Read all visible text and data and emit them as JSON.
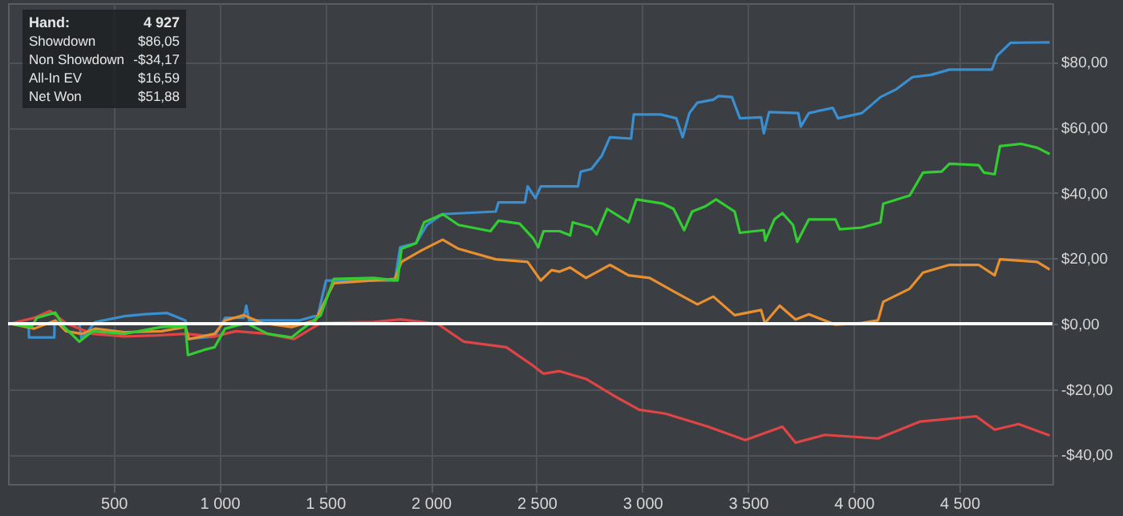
{
  "chart_data": {
    "type": "line",
    "xlim": [
      0,
      4940
    ],
    "ylim": [
      -49,
      98
    ],
    "xticks": [
      {
        "value": 500,
        "label": "500"
      },
      {
        "value": 1000,
        "label": "1 000"
      },
      {
        "value": 1500,
        "label": "1 500"
      },
      {
        "value": 2000,
        "label": "2 000"
      },
      {
        "value": 2500,
        "label": "2 500"
      },
      {
        "value": 3000,
        "label": "3 000"
      },
      {
        "value": 3500,
        "label": "3 500"
      },
      {
        "value": 4000,
        "label": "4 000"
      },
      {
        "value": 4500,
        "label": "4 500"
      }
    ],
    "yticks": [
      {
        "value": -40,
        "label": "-$40,00"
      },
      {
        "value": -20,
        "label": "-$20,00"
      },
      {
        "value": 0,
        "label": "$0,00"
      },
      {
        "value": 20,
        "label": "$20,00"
      },
      {
        "value": 40,
        "label": "$40,00"
      },
      {
        "value": 60,
        "label": "$60,00"
      },
      {
        "value": 80,
        "label": "$80,00"
      }
    ],
    "grid": true,
    "ref_lines": [
      {
        "axis": "y",
        "value": 0,
        "color": "#ffffff"
      }
    ],
    "annotations": [
      "Hand:",
      "4 927",
      "Showdown",
      "$86,05",
      "Non Showdown",
      "-$34,17",
      "All-In EV",
      "$16,59",
      "Net Won",
      "$51,88"
    ],
    "series": [
      {
        "color": "#3a8fd0",
        "x": [
          10,
          98,
          99,
          219,
          220,
          337,
          348,
          412,
          550,
          650,
          751,
          839,
          846,
          977,
          1027,
          1115,
          1127,
          1140,
          1378,
          1466,
          1504,
          1830,
          1855,
          1930,
          1981,
          2056,
          2307,
          2320,
          2445,
          2458,
          2495,
          2520,
          2609,
          2696,
          2709,
          2759,
          2809,
          2847,
          2947,
          2960,
          3085,
          3161,
          3191,
          3223,
          3261,
          3336,
          3361,
          3424,
          3462,
          3562,
          3575,
          3600,
          3738,
          3750,
          3788,
          3901,
          3926,
          4039,
          4127,
          4202,
          4278,
          4366,
          4453,
          4654,
          4679,
          4742,
          4868,
          4927
        ],
        "values": [
          0,
          0,
          -4.2,
          -4.2,
          0,
          0,
          -4.7,
          0.5,
          2.3,
          2.9,
          3.3,
          1,
          -4.7,
          -3.9,
          1.8,
          1.8,
          5.5,
          1,
          1,
          2.6,
          13.2,
          13.2,
          23.4,
          24.6,
          30.2,
          33.5,
          34.3,
          37.1,
          37.1,
          42,
          38.4,
          42,
          42,
          42,
          46.5,
          47.3,
          51.4,
          57,
          56.6,
          64,
          64,
          62.8,
          57,
          64.4,
          67.6,
          68.5,
          69.6,
          69.3,
          62.8,
          63.1,
          58.2,
          64.7,
          64.4,
          60.3,
          64.4,
          66,
          62.8,
          64.4,
          69.3,
          71.7,
          75.4,
          76.1,
          77.7,
          77.7,
          82,
          85.9,
          86,
          86.05
        ]
      },
      {
        "color": "#e04545",
        "x": [
          10,
          124,
          199,
          274,
          400,
          550,
          701,
          839,
          977,
          1077,
          1228,
          1353,
          1479,
          1730,
          1855,
          2031,
          2156,
          2357,
          2483,
          2533,
          2609,
          2734,
          2860,
          2985,
          3110,
          3311,
          3487,
          3663,
          3725,
          3863,
          4115,
          4315,
          4579,
          4667,
          4780,
          4927
        ],
        "values": [
          0,
          1.8,
          3.9,
          0.2,
          -3.1,
          -3.9,
          -3.6,
          -3.1,
          -3.9,
          -2.3,
          -3.1,
          -4.7,
          0.2,
          0.5,
          1.3,
          0,
          -5.5,
          -7.2,
          -12.8,
          -15.3,
          -14.5,
          -16.9,
          -21.8,
          -26.3,
          -27.5,
          -31.5,
          -35.6,
          -31.5,
          -36.4,
          -34,
          -35.1,
          -29.9,
          -28.3,
          -32.4,
          -30.7,
          -34.17
        ]
      },
      {
        "color": "#e8902f",
        "x": [
          10,
          124,
          224,
          274,
          349,
          412,
          550,
          726,
          839,
          856,
          977,
          1027,
          1115,
          1203,
          1341,
          1454,
          1541,
          1830,
          1861,
          1955,
          2056,
          2131,
          2307,
          2458,
          2520,
          2571,
          2609,
          2659,
          2734,
          2847,
          2935,
          3035,
          3148,
          3261,
          3336,
          3437,
          3562,
          3580,
          3650,
          3725,
          3788,
          3914,
          4039,
          4115,
          4140,
          4265,
          4328,
          4453,
          4591,
          4667,
          4692,
          4868,
          4927
        ],
        "values": [
          0,
          -1.5,
          1,
          -2.3,
          -3.1,
          -1.5,
          -2.6,
          -2.3,
          -1,
          -4.7,
          -3.1,
          1,
          2.6,
          0.2,
          -1,
          1,
          12.4,
          13.7,
          18.9,
          22.4,
          25.7,
          22.9,
          19.7,
          18.9,
          13.2,
          16.4,
          15.9,
          17.2,
          14,
          18,
          14.8,
          14,
          9.9,
          5.9,
          8.3,
          2.6,
          4.2,
          0.2,
          5.5,
          1.3,
          2.9,
          -0.3,
          0.2,
          1,
          6.7,
          10.7,
          15.6,
          18,
          18,
          14.8,
          19.7,
          18.9,
          16.59
        ]
      },
      {
        "color": "#33cc33",
        "x": [
          10,
          111,
          136,
          224,
          261,
          337,
          400,
          550,
          726,
          839,
          851,
          927,
          977,
          1027,
          1127,
          1228,
          1341,
          1378,
          1479,
          1541,
          1730,
          1843,
          1861,
          1930,
          1968,
          2056,
          2131,
          2282,
          2320,
          2420,
          2483,
          2508,
          2533,
          2609,
          2659,
          2671,
          2759,
          2784,
          2834,
          2935,
          2972,
          3098,
          3148,
          3198,
          3236,
          3299,
          3349,
          3437,
          3462,
          3575,
          3582,
          3625,
          3663,
          3713,
          3733,
          3788,
          3914,
          3934,
          4039,
          4127,
          4140,
          4265,
          4328,
          4416,
          4453,
          4591,
          4616,
          4667,
          4692,
          4792,
          4868,
          4927
        ],
        "values": [
          0,
          -1,
          1.8,
          3.4,
          -0.7,
          -5.5,
          -2.3,
          -3.1,
          -1,
          -0.7,
          -9.6,
          -8,
          -7.2,
          -1.5,
          0.2,
          -3.1,
          -4.2,
          -2.3,
          2.6,
          13.7,
          14,
          13.2,
          22.9,
          24.6,
          31,
          33.5,
          30.2,
          28.3,
          31.5,
          30.6,
          26.2,
          23.4,
          28.3,
          28.3,
          27,
          31,
          29.4,
          27.3,
          35.1,
          31,
          38,
          36.7,
          35.1,
          28.6,
          34.3,
          35.9,
          38,
          34.3,
          27.8,
          28.6,
          25.4,
          31.9,
          33.8,
          30.2,
          25,
          31.9,
          31.9,
          28.9,
          29.4,
          31,
          36.7,
          39.2,
          46.2,
          46.5,
          48.9,
          48.5,
          46.2,
          45.7,
          54.3,
          55,
          53.8,
          51.88
        ]
      }
    ]
  }
}
